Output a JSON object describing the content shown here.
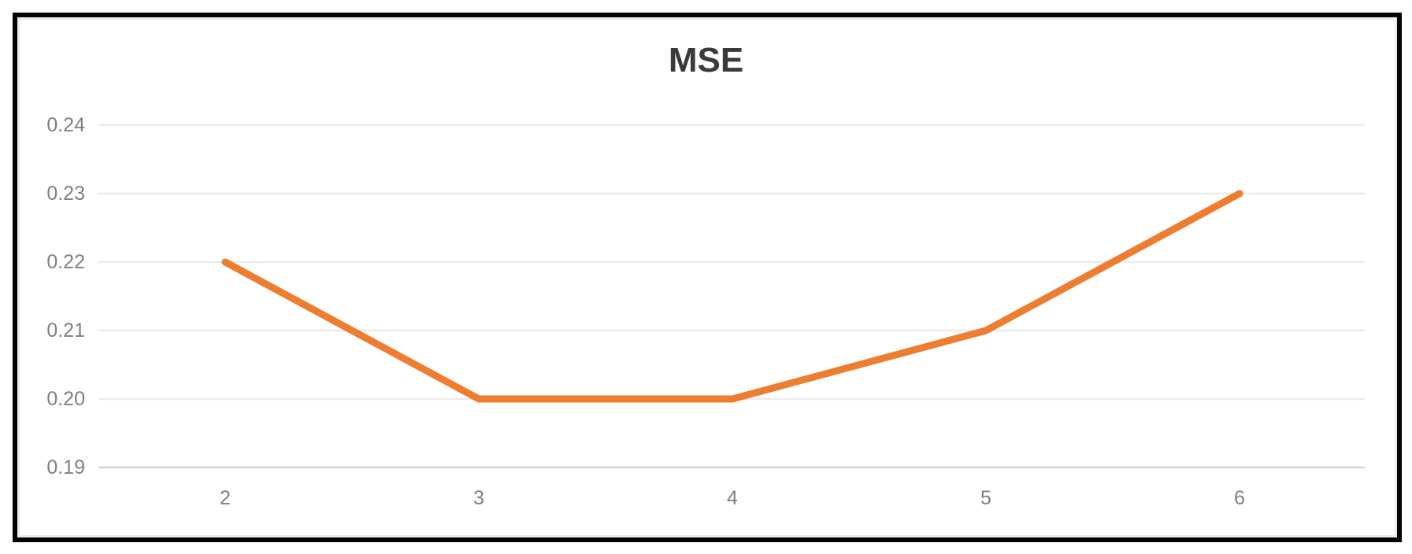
{
  "chart_data": {
    "type": "line",
    "title": "MSE",
    "x": [
      2,
      3,
      4,
      5,
      6
    ],
    "values": [
      0.22,
      0.2,
      0.2,
      0.21,
      0.23
    ],
    "series": [
      {
        "name": "MSE",
        "values": [
          0.22,
          0.2,
          0.2,
          0.21,
          0.23
        ]
      }
    ],
    "xlabel": "",
    "ylabel": "",
    "ylim": [
      0.19,
      0.24
    ],
    "y_ticks": [
      "0.24",
      "0.23",
      "0.22",
      "0.21",
      "0.20",
      "0.19"
    ],
    "x_ticks": [
      "2",
      "3",
      "4",
      "5",
      "6"
    ],
    "grid": "horizontal",
    "legend": "none",
    "colors": {
      "line": "#ED7D31",
      "gridline": "#EBEBEB",
      "axis_line": "#D6D6D6",
      "tick_label": "#7F7F7F",
      "title": "#3A3A3A",
      "frame_border": "#030303",
      "background": "#FFFFFF"
    }
  }
}
